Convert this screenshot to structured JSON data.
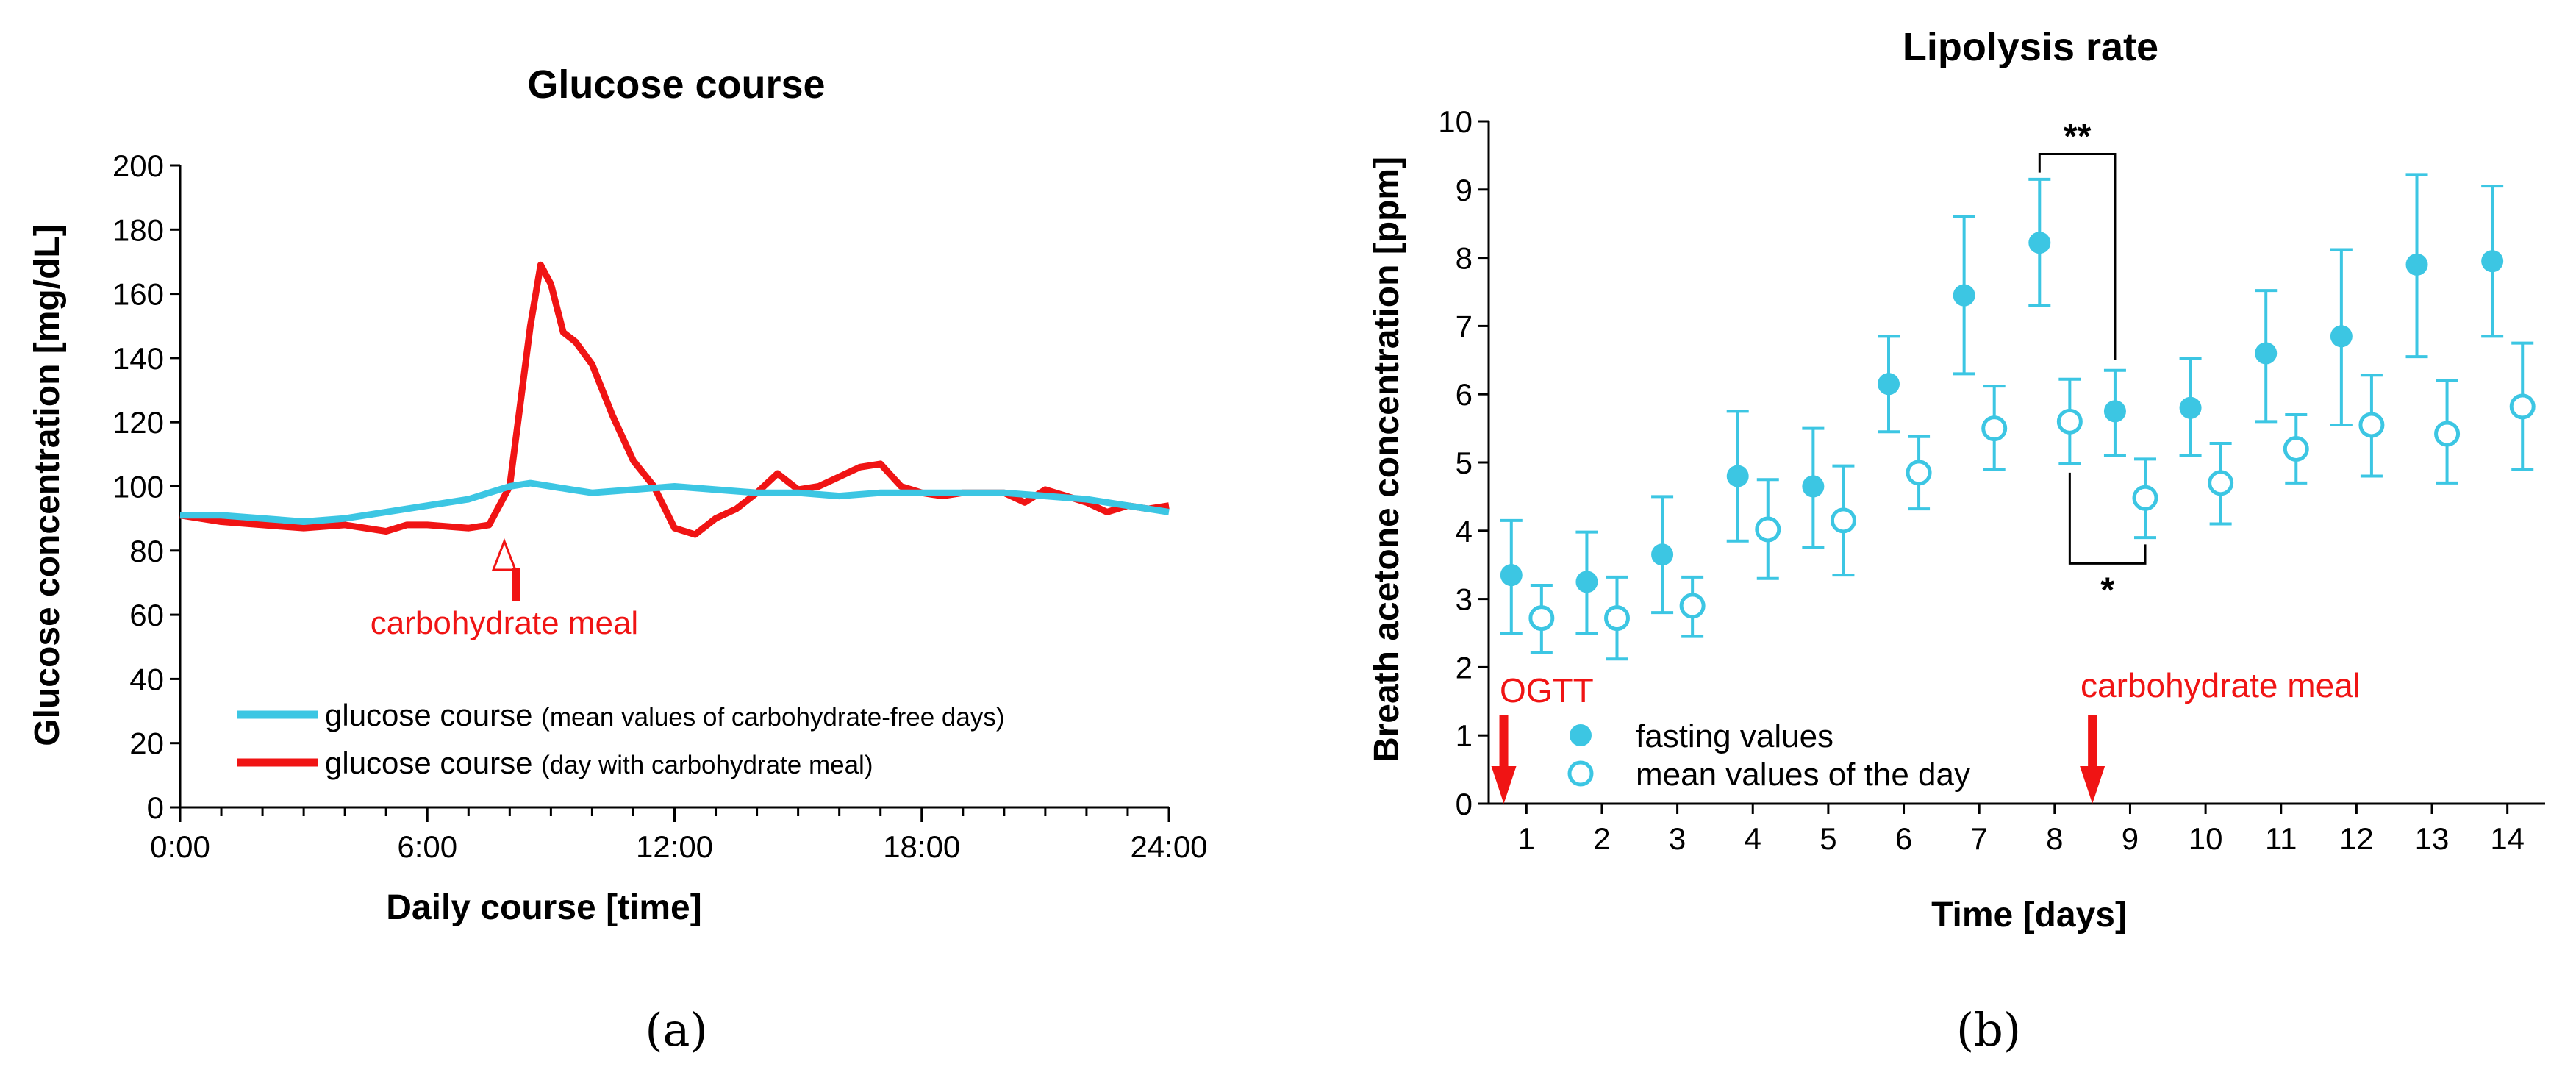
{
  "colors": {
    "cyan": "#3cc6e3",
    "red": "#f01414",
    "black": "#000000"
  },
  "chart_data": [
    {
      "type": "line",
      "panel_label": "(a)",
      "title": "Glucose course",
      "xlabel": "Daily course [time]",
      "ylabel": "Glucose concentration [mg/dL]",
      "xlim": [
        0,
        24
      ],
      "ylim": [
        0,
        200
      ],
      "x_tick_labels": [
        "0:00",
        "6:00",
        "12:00",
        "18:00",
        "24:00"
      ],
      "y_tick_labels": [
        "0",
        "20",
        "40",
        "60",
        "80",
        "100",
        "120",
        "140",
        "160",
        "180",
        "200"
      ],
      "annotation": {
        "text": "carbohydrate meal",
        "x": 8.2
      },
      "legend": [
        {
          "name": "glucose course",
          "detail": "(mean values of carbohydrate-free days)"
        },
        {
          "name": "glucose course",
          "detail": "(day with carbohydrate meal)"
        }
      ],
      "series": [
        {
          "name": "glucose course (mean values of carbohydrate-free days)",
          "color": "#3cc6e3",
          "x": [
            0,
            1,
            2,
            3,
            4,
            5,
            6,
            7,
            7.5,
            8,
            8.5,
            9,
            9.5,
            10,
            11,
            12,
            13,
            14,
            15,
            16,
            17,
            18,
            19,
            20,
            21,
            22,
            23,
            24
          ],
          "y": [
            91,
            91,
            90,
            89,
            90,
            92,
            94,
            96,
            98,
            100,
            101,
            100,
            99,
            98,
            99,
            100,
            99,
            98,
            98,
            97,
            98,
            98,
            98,
            98,
            97,
            96,
            94,
            92
          ]
        },
        {
          "name": "glucose course (day with carbohydrate meal)",
          "color": "#f01414",
          "x": [
            0,
            1,
            2,
            3,
            4,
            5,
            5.5,
            6,
            7,
            7.5,
            8,
            8.5,
            8.75,
            9,
            9.3,
            9.6,
            10,
            10.5,
            11,
            11.5,
            12,
            12.5,
            13,
            13.5,
            14,
            14.5,
            15,
            15.5,
            16,
            16.5,
            17,
            17.5,
            18,
            18.5,
            19,
            20,
            20.5,
            21,
            21.5,
            22,
            22.5,
            23,
            23.5,
            24
          ],
          "y": [
            91,
            89,
            88,
            87,
            88,
            86,
            88,
            88,
            87,
            88,
            100,
            150,
            169,
            163,
            148,
            145,
            138,
            122,
            108,
            100,
            87,
            85,
            90,
            93,
            98,
            104,
            99,
            100,
            103,
            106,
            107,
            100,
            98,
            97,
            98,
            98,
            95,
            99,
            97,
            95,
            92,
            94,
            93,
            94
          ]
        }
      ]
    },
    {
      "type": "scatter",
      "panel_label": "(b)",
      "title": "Lipolysis rate",
      "xlabel": "Time [days]",
      "ylabel": "Breath acetone concentration [ppm]",
      "xlim": [
        0.5,
        14.5
      ],
      "ylim": [
        0,
        10
      ],
      "x_tick_labels": [
        "1",
        "2",
        "3",
        "4",
        "5",
        "6",
        "7",
        "8",
        "9",
        "10",
        "11",
        "12",
        "13",
        "14"
      ],
      "y_tick_labels": [
        "0",
        "1",
        "2",
        "3",
        "4",
        "5",
        "6",
        "7",
        "8",
        "9",
        "10"
      ],
      "annotations": [
        {
          "text": "OGTT",
          "x": 0.7
        },
        {
          "text": "carbohydrate meal",
          "x": 8.5
        }
      ],
      "significance": [
        {
          "text": "**",
          "between": [
            "fasting day 8",
            "fasting day 9"
          ]
        },
        {
          "text": "*",
          "between": [
            "mean day 8",
            "mean day 9"
          ]
        }
      ],
      "legend": [
        {
          "name": "fasting values",
          "marker": "filled"
        },
        {
          "name": "mean values of the day",
          "marker": "open"
        }
      ],
      "series": [
        {
          "name": "fasting values",
          "marker": "filled",
          "x": [
            0.8,
            1.8,
            2.8,
            3.8,
            4.8,
            5.8,
            6.8,
            7.8,
            8.8,
            9.8,
            10.8,
            11.8,
            12.8,
            13.8
          ],
          "y": [
            3.35,
            3.25,
            3.65,
            4.8,
            4.65,
            6.15,
            7.45,
            8.22,
            5.75,
            5.8,
            6.6,
            6.85,
            7.9,
            7.95
          ],
          "err_low": [
            2.5,
            2.5,
            2.8,
            3.85,
            3.75,
            5.45,
            6.3,
            7.3,
            5.1,
            5.1,
            5.6,
            5.55,
            6.55,
            6.85
          ],
          "err_high": [
            4.15,
            3.98,
            4.5,
            5.75,
            5.5,
            6.85,
            8.6,
            9.15,
            6.35,
            6.52,
            7.52,
            8.12,
            9.22,
            9.05
          ]
        },
        {
          "name": "mean values of the day",
          "marker": "open",
          "x": [
            1.2,
            2.2,
            3.2,
            4.2,
            5.2,
            6.2,
            7.2,
            8.2,
            9.2,
            10.2,
            11.2,
            12.2,
            13.2,
            14.2
          ],
          "y": [
            2.72,
            2.72,
            2.9,
            4.02,
            4.15,
            4.85,
            5.5,
            5.6,
            4.48,
            4.7,
            5.2,
            5.55,
            5.42,
            5.82
          ],
          "err_low": [
            2.22,
            2.12,
            2.45,
            3.3,
            3.35,
            4.32,
            4.9,
            4.98,
            3.9,
            4.1,
            4.7,
            4.8,
            4.7,
            4.9
          ],
          "err_high": [
            3.2,
            3.32,
            3.32,
            4.75,
            4.95,
            5.38,
            6.12,
            6.22,
            5.05,
            5.28,
            5.7,
            6.28,
            6.2,
            6.75
          ]
        }
      ]
    }
  ]
}
